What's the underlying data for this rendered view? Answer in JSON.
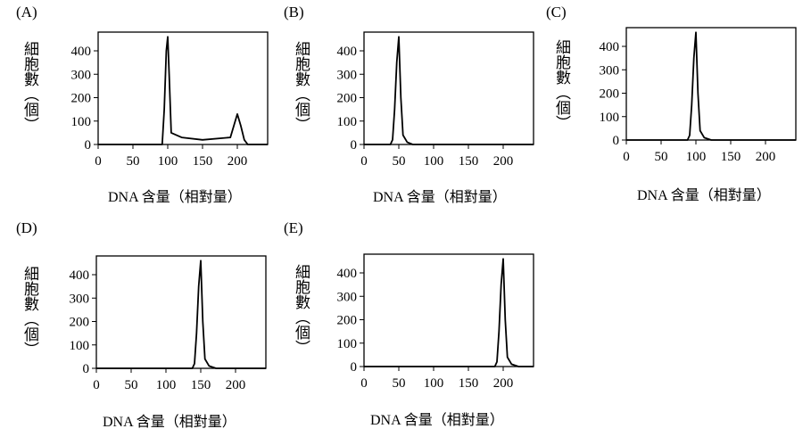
{
  "chart_data": [
    {
      "type": "line",
      "panel_label": "(A)",
      "xlabel": "DNA 含量（相對量）",
      "ylabel": "細胞數（個）",
      "xlim": [
        0,
        250
      ],
      "ylim": [
        0,
        480
      ],
      "xticks": [
        "0",
        "50",
        "100",
        "150",
        "200"
      ],
      "yticks": [
        "0",
        "100",
        "200",
        "300",
        "400"
      ],
      "x": [
        92,
        95,
        98,
        100,
        102,
        105,
        120,
        150,
        190,
        195,
        200,
        205,
        210,
        215
      ],
      "y": [
        0,
        150,
        400,
        460,
        300,
        50,
        30,
        20,
        30,
        80,
        130,
        80,
        20,
        0
      ]
    },
    {
      "type": "line",
      "panel_label": "(B)",
      "xlabel": "DNA 含量（相對量）",
      "ylabel": "細胞數（個）",
      "xlim": [
        0,
        250
      ],
      "ylim": [
        0,
        480
      ],
      "xticks": [
        "0",
        "50",
        "100",
        "150",
        "200"
      ],
      "yticks": [
        "0",
        "100",
        "200",
        "300",
        "400"
      ],
      "x": [
        38,
        41,
        44,
        47,
        50,
        53,
        56,
        62,
        70
      ],
      "y": [
        0,
        20,
        150,
        350,
        460,
        200,
        40,
        10,
        0
      ]
    },
    {
      "type": "line",
      "panel_label": "(C)",
      "xlabel": "DNA 含量（相對量）",
      "ylabel": "細胞數（個）",
      "xlim": [
        0,
        250
      ],
      "ylim": [
        0,
        480
      ],
      "xticks": [
        "0",
        "50",
        "100",
        "150",
        "200"
      ],
      "yticks": [
        "0",
        "100",
        "200",
        "300",
        "400"
      ],
      "x": [
        88,
        91,
        94,
        97,
        100,
        103,
        106,
        112,
        122
      ],
      "y": [
        0,
        20,
        150,
        350,
        460,
        200,
        40,
        10,
        0
      ]
    },
    {
      "type": "line",
      "panel_label": "(D)",
      "xlabel": "DNA 含量（相對量）",
      "ylabel": "細胞數（個）",
      "xlim": [
        0,
        250
      ],
      "ylim": [
        0,
        480
      ],
      "xticks": [
        "0",
        "50",
        "100",
        "150",
        "200"
      ],
      "yticks": [
        "0",
        "100",
        "200",
        "300",
        "400"
      ],
      "x": [
        138,
        141,
        144,
        147,
        150,
        153,
        156,
        162,
        172
      ],
      "y": [
        0,
        20,
        150,
        350,
        460,
        200,
        40,
        10,
        0
      ]
    },
    {
      "type": "line",
      "panel_label": "(E)",
      "xlabel": "DNA 含量（相對量）",
      "ylabel": "細胞數（個）",
      "xlim": [
        0,
        250
      ],
      "ylim": [
        0,
        480
      ],
      "xticks": [
        "0",
        "50",
        "100",
        "150",
        "200"
      ],
      "yticks": [
        "0",
        "100",
        "200",
        "300",
        "400"
      ],
      "x": [
        188,
        191,
        194,
        197,
        200,
        203,
        206,
        212,
        222
      ],
      "y": [
        0,
        20,
        150,
        350,
        460,
        200,
        40,
        10,
        0
      ]
    }
  ]
}
